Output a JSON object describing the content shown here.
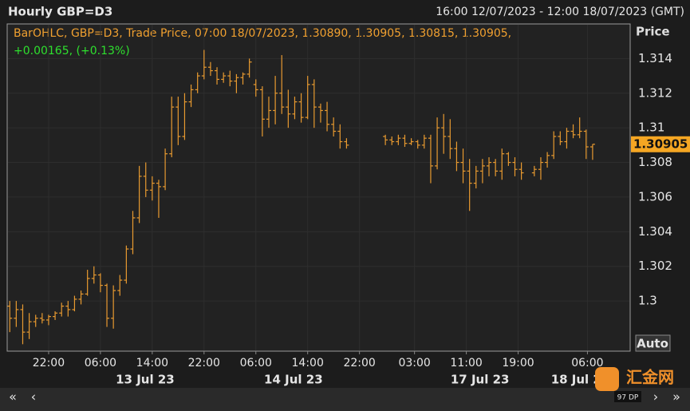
{
  "chart_data": {
    "type": "ohlc",
    "title": "Hourly GBP=D3",
    "range_text": "16:00 12/07/2023 - 12:00 18/07/2023 (GMT)",
    "y_label": "Price",
    "legend_text": "BarOHLC, GBP=D3, Trade Price, 07:00 18/07/2023, 1.30890, 1.30905, 1.30815, 1.30905,",
    "change_text": "+0.00165, (+0.13%)",
    "last_price": 1.30905,
    "auto_button": "Auto",
    "dp_label": "97 DP",
    "watermark": "汇金网",
    "color": "#e89a30",
    "grid": true,
    "ylim": [
      1.2971,
      1.316
    ],
    "yticks": [
      1.3,
      1.302,
      1.304,
      1.306,
      1.308,
      1.31,
      1.312,
      1.314
    ],
    "xlim": [
      -0.4,
      95.8
    ],
    "xticks": [
      {
        "value": 6,
        "label": "22:00"
      },
      {
        "value": 14,
        "label": "06:00"
      },
      {
        "value": 22,
        "label": "14:00"
      },
      {
        "value": 30,
        "label": "22:00"
      },
      {
        "value": 38,
        "label": "06:00"
      },
      {
        "value": 46,
        "label": "14:00"
      },
      {
        "value": 54,
        "label": "22:00"
      },
      {
        "value": 62.5,
        "label": "03:00"
      },
      {
        "value": 70.5,
        "label": "11:00"
      },
      {
        "value": 78.5,
        "label": "19:00"
      },
      {
        "value": 89.2,
        "label": "06:00"
      }
    ],
    "date_ticks": [
      {
        "value": 20.9,
        "label": "13 Jul 23"
      },
      {
        "value": 43.8,
        "label": "14 Jul 23"
      },
      {
        "value": 72.6,
        "label": "17 Jul 23"
      },
      {
        "value": 88.1,
        "label": "18 Jul 23"
      }
    ],
    "x": [
      0,
      1,
      2,
      3,
      4,
      5,
      6,
      7,
      8,
      9,
      10,
      11,
      12,
      13,
      14,
      15,
      16,
      17,
      18,
      19,
      20,
      21,
      22,
      23,
      24,
      25,
      26,
      27,
      28,
      29,
      30,
      31,
      32,
      33,
      34,
      35,
      36,
      37,
      38,
      39,
      40,
      41,
      42,
      43,
      44,
      45,
      46,
      47,
      48,
      49,
      50,
      51,
      52,
      53,
      54,
      55,
      56,
      57,
      58,
      59,
      60,
      61,
      62,
      63,
      64,
      65,
      66,
      67,
      68,
      69,
      70,
      71,
      72,
      73,
      74,
      75,
      76,
      77,
      78,
      79,
      80,
      81,
      82,
      83,
      84,
      85,
      86,
      87,
      88,
      89,
      90
    ],
    "open": [
      1.2997,
      1.299,
      1.2995,
      1.2982,
      1.2988,
      1.299,
      1.2989,
      1.2991,
      1.2993,
      1.2997,
      1.2995,
      1.3001,
      1.3004,
      1.3013,
      1.3015,
      1.3009,
      1.299,
      1.3006,
      1.3012,
      1.303,
      1.3048,
      1.3072,
      1.3064,
      1.3068,
      1.3066,
      1.3085,
      1.3112,
      1.3095,
      1.3115,
      1.3122,
      1.313,
      1.3135,
      1.3133,
      1.3128,
      1.313,
      1.3127,
      1.3129,
      1.3131,
      1.3125,
      1.3122,
      1.3105,
      1.311,
      1.312,
      1.3112,
      1.3108,
      1.3115,
      1.3106,
      1.3125,
      1.3112,
      1.311,
      1.3102,
      1.3098,
      1.3092,
      null,
      null,
      null,
      null,
      null,
      1.3095,
      1.3093,
      1.3092,
      1.3094,
      1.3091,
      1.3092,
      1.309,
      1.3094,
      1.3078,
      1.31,
      1.3095,
      1.3088,
      1.308,
      1.3075,
      1.3068,
      1.3075,
      1.3078,
      1.308,
      1.3075,
      1.3085,
      1.308,
      1.3076,
      null,
      1.3074,
      1.3076,
      1.308,
      1.3084,
      1.3095,
      1.3092,
      1.3098,
      1.3096,
      1.3098,
      1.3089
    ],
    "high": [
      1.3,
      1.3,
      1.2998,
      1.2993,
      1.2992,
      1.2993,
      1.2992,
      1.2994,
      1.2999,
      1.3,
      1.3003,
      1.3006,
      1.3018,
      1.302,
      1.3016,
      1.301,
      1.3009,
      1.3015,
      1.3032,
      1.3052,
      1.3078,
      1.308,
      1.3072,
      1.307,
      1.3088,
      1.3118,
      1.3118,
      1.312,
      1.3125,
      1.3132,
      1.3145,
      1.3138,
      1.3135,
      1.3132,
      1.3133,
      1.3131,
      1.3132,
      1.314,
      1.3128,
      1.3124,
      1.3118,
      1.313,
      1.3142,
      1.3122,
      1.3118,
      1.312,
      1.313,
      1.3128,
      1.3114,
      1.3115,
      1.3106,
      1.3102,
      1.3094,
      null,
      null,
      null,
      null,
      null,
      1.3096,
      1.3095,
      1.3096,
      1.3096,
      1.3094,
      1.3093,
      1.3096,
      1.3096,
      1.3106,
      1.3108,
      1.3105,
      1.3092,
      1.3088,
      1.3082,
      1.3078,
      1.3082,
      1.3083,
      1.3082,
      1.3088,
      1.3086,
      1.3083,
      1.308,
      null,
      1.3078,
      1.3083,
      1.3086,
      1.3098,
      1.3098,
      1.31,
      1.3102,
      1.3106,
      1.3099,
      1.30905
    ],
    "low": [
      1.2982,
      1.2985,
      1.2975,
      1.2978,
      1.2985,
      1.2987,
      1.2986,
      1.2989,
      1.2991,
      1.2991,
      1.2994,
      1.2998,
      1.3003,
      1.301,
      1.3005,
      1.2985,
      1.2984,
      1.3003,
      1.301,
      1.3027,
      1.3045,
      1.306,
      1.3058,
      1.3048,
      1.3064,
      1.3083,
      1.309,
      1.3093,
      1.3112,
      1.312,
      1.3128,
      1.313,
      1.3125,
      1.3126,
      1.3124,
      1.312,
      1.3125,
      1.3129,
      1.3118,
      1.3095,
      1.31,
      1.3102,
      1.3108,
      1.31,
      1.3105,
      1.3103,
      1.3105,
      1.31,
      1.3103,
      1.3098,
      1.3095,
      1.3088,
      1.3088,
      null,
      null,
      null,
      null,
      null,
      1.309,
      1.309,
      1.309,
      1.3089,
      1.309,
      1.3088,
      1.3088,
      1.3068,
      1.3076,
      1.3085,
      1.3082,
      1.3075,
      1.3068,
      1.3052,
      1.3065,
      1.3068,
      1.3072,
      1.3072,
      1.307,
      1.3078,
      1.3072,
      1.307,
      null,
      1.3072,
      1.307,
      1.3077,
      1.3082,
      1.309,
      1.3088,
      1.3094,
      1.3094,
      1.3082,
      1.30815
    ],
    "close": [
      1.299,
      1.2995,
      1.2982,
      1.2988,
      1.299,
      1.2989,
      1.2991,
      1.2993,
      1.2997,
      1.2995,
      1.3001,
      1.3004,
      1.3013,
      1.3015,
      1.3009,
      1.299,
      1.3006,
      1.3012,
      1.303,
      1.3048,
      1.3072,
      1.3064,
      1.3068,
      1.3066,
      1.3085,
      1.3112,
      1.3095,
      1.3115,
      1.3122,
      1.313,
      1.3135,
      1.3133,
      1.3128,
      1.313,
      1.3127,
      1.3129,
      1.3131,
      1.3138,
      1.3122,
      1.3105,
      1.311,
      1.312,
      1.3112,
      1.3108,
      1.3115,
      1.3106,
      1.3125,
      1.3112,
      1.311,
      1.3102,
      1.3098,
      1.3092,
      1.309,
      null,
      null,
      null,
      null,
      null,
      1.3093,
      1.3092,
      1.3094,
      1.3091,
      1.3092,
      1.309,
      1.3094,
      1.3078,
      1.31,
      1.3095,
      1.3088,
      1.308,
      1.3075,
      1.3068,
      1.3075,
      1.3078,
      1.308,
      1.3075,
      1.3085,
      1.308,
      1.3076,
      1.3074,
      null,
      1.3076,
      1.308,
      1.3084,
      1.3095,
      1.3092,
      1.3098,
      1.3096,
      1.3098,
      1.3089,
      1.30905
    ]
  }
}
